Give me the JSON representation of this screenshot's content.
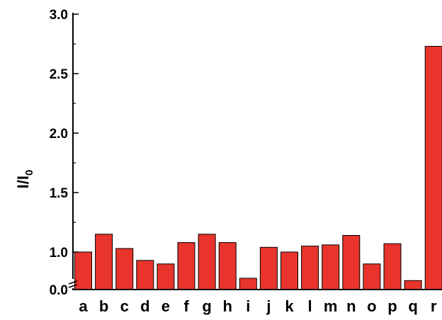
{
  "chart_data": {
    "type": "bar",
    "title": "",
    "xlabel": "",
    "ylabel": "I/I",
    "ylabel_subscript": "0",
    "categories": [
      "a",
      "b",
      "c",
      "d",
      "e",
      "f",
      "g",
      "h",
      "i",
      "j",
      "k",
      "l",
      "m",
      "n",
      "o",
      "p",
      "q",
      "r"
    ],
    "values": [
      1.0,
      1.15,
      1.03,
      0.93,
      0.9,
      1.08,
      1.15,
      1.08,
      0.78,
      1.04,
      1.0,
      1.05,
      1.06,
      1.14,
      0.9,
      1.07,
      0.76,
      2.73
    ],
    "yticks": [
      "0.0",
      "1.0",
      "1.5",
      "2.0",
      "2.5",
      "3.0"
    ],
    "ylim": [
      0.0,
      3.0
    ],
    "axis_break": [
      0.0,
      0.75
    ],
    "grid": false,
    "bar_color": "#e8342c",
    "bar_edge_color": "#000000"
  }
}
